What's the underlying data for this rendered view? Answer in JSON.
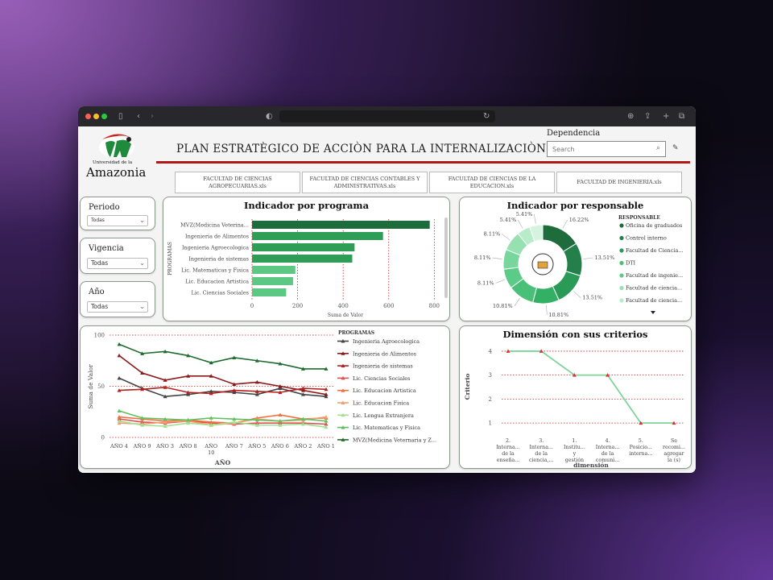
{
  "browser": {
    "icons": [
      "sidebar-icon",
      "back-icon",
      "forward-icon",
      "shield-icon",
      "reload-icon",
      "download-icon",
      "share-icon",
      "new-tab-icon",
      "tabs-icon"
    ]
  },
  "header": {
    "logo_line1": "Universidad de la",
    "logo_line2": "Amazonia",
    "title": "PLAN ESTRATÈGICO DE ACCIÒN PARA LA INTERNALIZACIÒN",
    "dependencia_label": "Dependencia",
    "search_placeholder": "Search"
  },
  "files": [
    "FACULTAD DE CIENCIAS AGROPECUARIAS.xls",
    "FACULTAD DE CIENCIAS CONTABLES Y ADMINISTRATIVAS.xls",
    "FACULTAD DE CIENCIAS DE LA EDUCACION.xls",
    "FACULTAD DE INGENIERIA.xls"
  ],
  "filters": {
    "periodo": {
      "label": "Periodo",
      "value": "Todas"
    },
    "vigencia": {
      "label": "Vigencia",
      "value": "Todas"
    },
    "anio": {
      "label": "Año",
      "value": "Todas"
    }
  },
  "colors": {
    "accent_red": "#b01818",
    "green_dark": "#1e6b3c",
    "green": "#2e9e57",
    "green_light": "#7fd49a"
  },
  "chart_data": [
    {
      "id": "programa",
      "type": "bar",
      "title": "Indicador por programa",
      "ylabel": "PROGRAMAS",
      "xlabel": "Suma de Valor",
      "categories": [
        "MVZ(Medicina Veterina...",
        "Ingenieria de Alimentos",
        "Ingenieria Agroecologica",
        "Ingenieria de sistemas",
        "Lic. Matematicas y Fisica",
        "Lic. Educacion Artistica",
        "Lic. Ciencias Sociales"
      ],
      "values": [
        780,
        575,
        450,
        440,
        190,
        180,
        150
      ],
      "xticks": [
        "0",
        "200",
        "400",
        "600",
        "800"
      ],
      "xlim": [
        0,
        820
      ]
    },
    {
      "id": "responsable",
      "type": "pie",
      "title": "Indicador por responsable",
      "legend_title": "RESPONSABLE",
      "legend": [
        "Oficina de graduados",
        "Control interno",
        "Facultad de Ciencia...",
        "DTI",
        "Facultad de ingenie...",
        "Facultad de ciencia...",
        "Facultad de ciencia..."
      ],
      "slices": [
        16.22,
        13.51,
        13.51,
        10.81,
        10.81,
        8.11,
        8.11,
        8.11,
        5.41,
        5.41
      ],
      "labels": [
        "16.22%",
        "13.51%",
        "13.51%",
        "10.81%",
        "10.81%",
        "8.11%",
        "8.11%",
        "8.11%",
        "5.41%",
        "5.41%"
      ]
    },
    {
      "id": "anio",
      "type": "line",
      "xlabel": "AÑO",
      "ylabel": "Suma de Valor",
      "legend_title": "PROGRAMAS",
      "categories": [
        "AÑO 4",
        "AÑO 9",
        "AÑO 3",
        "AÑO 8",
        "AÑO 10",
        "AÑO 7",
        "AÑO 5",
        "AÑO 6",
        "AÑO 2",
        "AÑO 1"
      ],
      "yticks": [
        "0",
        "50",
        "100"
      ],
      "ylim": [
        0,
        100
      ],
      "series": [
        {
          "name": "Ingenieria Agroecologica",
          "values": [
            58,
            48,
            40,
            42,
            45,
            44,
            42,
            48,
            42,
            40
          ]
        },
        {
          "name": "Ingenieria de Alimentos",
          "values": [
            80,
            63,
            56,
            60,
            60,
            52,
            54,
            50,
            46,
            42
          ]
        },
        {
          "name": "Ingenieria de sistemas",
          "values": [
            46,
            47,
            49,
            44,
            43,
            46,
            45,
            44,
            48,
            47
          ]
        },
        {
          "name": "Lic. Ciencias Sociales",
          "values": [
            18,
            15,
            14,
            16,
            14,
            13,
            14,
            14,
            14,
            13
          ]
        },
        {
          "name": "Lic. Educacion Artistica",
          "values": [
            20,
            18,
            16,
            17,
            15,
            14,
            19,
            22,
            18,
            19
          ]
        },
        {
          "name": "Lic. Educacion Fisica",
          "values": [
            14,
            13,
            15,
            16,
            12,
            14,
            18,
            16,
            17,
            20
          ]
        },
        {
          "name": "Lic. Lengua Extranjera",
          "values": [
            16,
            12,
            11,
            14,
            12,
            15,
            12,
            12,
            13,
            10
          ]
        },
        {
          "name": "Lic. Matematicas y Fisica",
          "values": [
            26,
            19,
            18,
            17,
            19,
            18,
            17,
            16,
            18,
            16
          ]
        },
        {
          "name": "MVZ(Medicina Veternaria y Z...",
          "values": [
            91,
            82,
            84,
            80,
            73,
            78,
            75,
            72,
            67,
            67
          ]
        }
      ],
      "series_colors": [
        "#444444",
        "#8b1a1a",
        "#b52020",
        "#e05050",
        "#f07040",
        "#f0a070",
        "#a0e090",
        "#60c060",
        "#1e6b2e"
      ]
    },
    {
      "id": "dimension",
      "type": "line",
      "title": "Dimensión con sus criterios",
      "xlabel": "dimensión",
      "ylabel": "Criterio",
      "categories": [
        "2. Interna... de la enseña...",
        "3. Interna... de la ciencia,...",
        "1. Institu... y gestión de la in...",
        "4. Interna... de la comuni...",
        "5. Posicio... interna...",
        "Se recomi... agregar la (s) que ..."
      ],
      "values": [
        4,
        4,
        3,
        3,
        1,
        1
      ],
      "yticks": [
        "1",
        "2",
        "3",
        "4"
      ],
      "ylim": [
        0.6,
        4.3
      ]
    }
  ]
}
